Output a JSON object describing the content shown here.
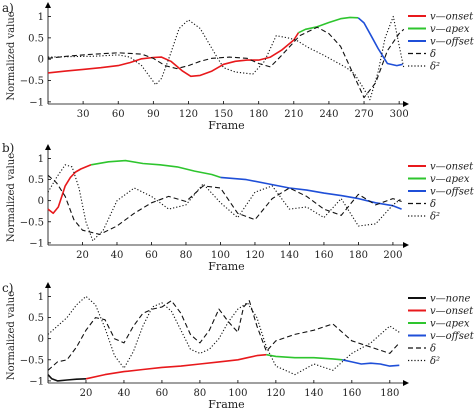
{
  "chart_data": [
    {
      "type": "line",
      "panel_label": "a)",
      "xlabel": "Frame",
      "ylabel": "Normalized value",
      "xlim": [
        0,
        305
      ],
      "ylim": [
        -1.05,
        1.2
      ],
      "xticks": [
        30,
        60,
        90,
        120,
        150,
        180,
        210,
        240,
        270,
        300
      ],
      "yticks": [
        -1,
        -0.5,
        0,
        0.5,
        1
      ],
      "series": [
        {
          "name": "v—onset",
          "color": "#e8191c",
          "style": "solid",
          "x": [
            0,
            15,
            30,
            45,
            60,
            70,
            80,
            90,
            97,
            105,
            115,
            122,
            130,
            140,
            150,
            160,
            170,
            180,
            190,
            200,
            210,
            214
          ],
          "y": [
            -0.32,
            -0.28,
            -0.24,
            -0.2,
            -0.15,
            -0.08,
            0.01,
            0.04,
            0.05,
            -0.05,
            -0.28,
            -0.4,
            -0.38,
            -0.28,
            -0.12,
            -0.05,
            -0.02,
            -0.02,
            0.05,
            0.22,
            0.45,
            0.62
          ]
        },
        {
          "name": "v—apex",
          "color": "#2ec52e",
          "style": "solid",
          "x": [
            214,
            220,
            230,
            240,
            250,
            258,
            265
          ],
          "y": [
            0.62,
            0.7,
            0.76,
            0.86,
            0.95,
            0.98,
            0.97
          ]
        },
        {
          "name": "v—offset",
          "color": "#1f4fd8",
          "style": "solid",
          "x": [
            265,
            270,
            276,
            282,
            290,
            298,
            303
          ],
          "y": [
            0.97,
            0.85,
            0.55,
            0.25,
            -0.1,
            -0.15,
            -0.12
          ]
        },
        {
          "name": "δ",
          "color": "#111111",
          "style": "dashed",
          "x": [
            0,
            20,
            40,
            60,
            80,
            90,
            100,
            110,
            120,
            130,
            140,
            155,
            170,
            180,
            190,
            200,
            215,
            230,
            240,
            250,
            260,
            270,
            280,
            290,
            300,
            304
          ],
          "y": [
            0.02,
            0.08,
            0.12,
            0.15,
            0.12,
            0.02,
            -0.15,
            -0.22,
            -0.15,
            -0.05,
            0.02,
            0.05,
            0.02,
            -0.1,
            -0.18,
            0.1,
            0.55,
            0.75,
            0.6,
            0.3,
            -0.3,
            -0.9,
            -0.55,
            0.2,
            0.6,
            0.7
          ]
        },
        {
          "name": "δ²",
          "color": "#111111",
          "style": "dotted",
          "x": [
            0,
            20,
            40,
            60,
            70,
            80,
            88,
            92,
            97,
            105,
            112,
            120,
            130,
            145,
            150,
            160,
            175,
            185,
            195,
            205,
            212,
            222,
            235,
            245,
            255,
            262,
            270,
            275,
            282,
            288,
            295,
            302,
            304
          ],
          "y": [
            0.05,
            0.06,
            0.07,
            0.1,
            0.05,
            -0.15,
            -0.45,
            -0.6,
            -0.45,
            0.15,
            0.72,
            0.92,
            0.72,
            0.02,
            -0.2,
            -0.3,
            -0.35,
            -0.05,
            0.55,
            0.5,
            0.45,
            0.28,
            0.1,
            -0.05,
            -0.2,
            -0.35,
            -0.7,
            -0.95,
            -0.3,
            0.5,
            1.0,
            0.05,
            -0.2
          ]
        }
      ]
    },
    {
      "type": "line",
      "panel_label": "b)",
      "xlabel": "Frame",
      "ylabel": "Normalized value",
      "xlim": [
        0,
        207
      ],
      "ylim": [
        -1.05,
        1.2
      ],
      "xticks": [
        20,
        40,
        60,
        80,
        100,
        120,
        140,
        160,
        180,
        200
      ],
      "yticks": [
        -1,
        -0.5,
        0,
        0.5,
        1
      ],
      "series": [
        {
          "name": "v—onset",
          "color": "#e8191c",
          "style": "solid",
          "x": [
            0,
            3,
            6,
            8,
            10,
            13,
            16,
            19,
            22,
            25
          ],
          "y": [
            -0.2,
            -0.3,
            -0.15,
            0.1,
            0.35,
            0.55,
            0.68,
            0.75,
            0.8,
            0.85
          ]
        },
        {
          "name": "v—apex",
          "color": "#2ec52e",
          "style": "solid",
          "x": [
            25,
            35,
            45,
            55,
            65,
            75,
            85,
            95,
            100
          ],
          "y": [
            0.85,
            0.92,
            0.95,
            0.88,
            0.85,
            0.8,
            0.7,
            0.62,
            0.55
          ]
        },
        {
          "name": "v—offset",
          "color": "#1f4fd8",
          "style": "solid",
          "x": [
            100,
            115,
            130,
            140,
            150,
            160,
            170,
            180,
            190,
            200,
            205
          ],
          "y": [
            0.55,
            0.5,
            0.38,
            0.3,
            0.25,
            0.18,
            0.12,
            0.05,
            -0.05,
            -0.12,
            -0.2
          ]
        },
        {
          "name": "δ",
          "color": "#111111",
          "style": "dashed",
          "x": [
            0,
            5,
            10,
            15,
            20,
            30,
            40,
            50,
            60,
            70,
            80,
            90,
            100,
            110,
            120,
            130,
            140,
            150,
            160,
            170,
            180,
            190,
            200,
            205
          ],
          "y": [
            0.6,
            0.42,
            0.1,
            -0.45,
            -0.7,
            -0.8,
            -0.6,
            -0.3,
            -0.05,
            0.1,
            -0.02,
            0.35,
            0.3,
            -0.3,
            -0.45,
            0.05,
            0.3,
            0.1,
            -0.2,
            -0.35,
            0.15,
            -0.1,
            0.05,
            -0.02
          ]
        },
        {
          "name": "δ²",
          "color": "#111111",
          "style": "dotted",
          "x": [
            0,
            5,
            10,
            14,
            18,
            22,
            26,
            32,
            40,
            50,
            60,
            70,
            80,
            90,
            100,
            110,
            120,
            130,
            140,
            150,
            160,
            170,
            180,
            190,
            200,
            205
          ],
          "y": [
            0.2,
            0.55,
            0.85,
            0.8,
            0.3,
            -0.5,
            -0.95,
            -0.7,
            0.0,
            0.3,
            0.1,
            -0.2,
            -0.1,
            0.4,
            -0.05,
            -0.4,
            0.2,
            0.35,
            -0.2,
            -0.15,
            -0.4,
            0.05,
            -0.6,
            -0.55,
            -0.1,
            0.05
          ]
        }
      ]
    },
    {
      "type": "line",
      "panel_label": "c)",
      "xlabel": "Frame",
      "ylabel": "Normalized value",
      "xlim": [
        0,
        188
      ],
      "ylim": [
        -1.05,
        1.2
      ],
      "xticks": [
        20,
        40,
        60,
        80,
        100,
        120,
        140,
        160,
        180
      ],
      "yticks": [
        -1,
        -0.5,
        0,
        0.5,
        1
      ],
      "series": [
        {
          "name": "v—none",
          "color": "#111111",
          "style": "solid",
          "x": [
            0,
            2,
            5,
            10,
            15,
            20
          ],
          "y": [
            -0.85,
            -0.95,
            -1.0,
            -0.98,
            -0.96,
            -0.95
          ]
        },
        {
          "name": "v—onset",
          "color": "#e8191c",
          "style": "solid",
          "x": [
            20,
            30,
            40,
            50,
            60,
            70,
            80,
            90,
            100,
            105,
            110,
            115
          ],
          "y": [
            -0.95,
            -0.85,
            -0.78,
            -0.73,
            -0.68,
            -0.65,
            -0.6,
            -0.55,
            -0.5,
            -0.45,
            -0.4,
            -0.38
          ]
        },
        {
          "name": "v—apex",
          "color": "#2ec52e",
          "style": "solid",
          "x": [
            115,
            120,
            130,
            140,
            150,
            155
          ],
          "y": [
            -0.38,
            -0.42,
            -0.45,
            -0.45,
            -0.48,
            -0.5
          ]
        },
        {
          "name": "v—offset",
          "color": "#1f4fd8",
          "style": "solid",
          "x": [
            155,
            160,
            165,
            170,
            175,
            180,
            185
          ],
          "y": [
            -0.5,
            -0.55,
            -0.6,
            -0.58,
            -0.6,
            -0.65,
            -0.63
          ]
        },
        {
          "name": "δ",
          "color": "#111111",
          "style": "dashed",
          "x": [
            0,
            5,
            10,
            15,
            20,
            25,
            30,
            35,
            40,
            45,
            50,
            55,
            60,
            65,
            70,
            75,
            80,
            85,
            90,
            95,
            100,
            103,
            106,
            110,
            115,
            120,
            130,
            140,
            150,
            160,
            170,
            180,
            185
          ],
          "y": [
            -0.75,
            -0.55,
            -0.5,
            -0.2,
            0.2,
            0.5,
            0.45,
            0.0,
            -0.1,
            0.3,
            0.6,
            0.7,
            0.75,
            0.9,
            0.6,
            0.1,
            -0.1,
            0.2,
            0.7,
            0.4,
            0.15,
            0.75,
            0.9,
            0.3,
            -0.3,
            -0.05,
            0.1,
            0.2,
            0.35,
            -0.05,
            -0.2,
            -0.35,
            -0.1
          ]
        },
        {
          "name": "δ²",
          "color": "#111111",
          "style": "dotted",
          "x": [
            0,
            5,
            10,
            15,
            20,
            25,
            30,
            35,
            40,
            45,
            50,
            55,
            60,
            65,
            70,
            75,
            80,
            85,
            90,
            95,
            100,
            105,
            110,
            115,
            120,
            130,
            140,
            150,
            160,
            170,
            180,
            185
          ],
          "y": [
            0.1,
            0.3,
            0.5,
            0.8,
            1.0,
            0.8,
            0.25,
            -0.4,
            -0.7,
            -0.3,
            0.3,
            0.75,
            0.85,
            0.65,
            0.2,
            -0.25,
            -0.35,
            -0.25,
            0.0,
            0.4,
            0.7,
            0.85,
            0.5,
            -0.2,
            -0.65,
            -0.85,
            -0.6,
            -0.75,
            -0.35,
            -0.1,
            0.3,
            0.15
          ]
        }
      ]
    }
  ]
}
